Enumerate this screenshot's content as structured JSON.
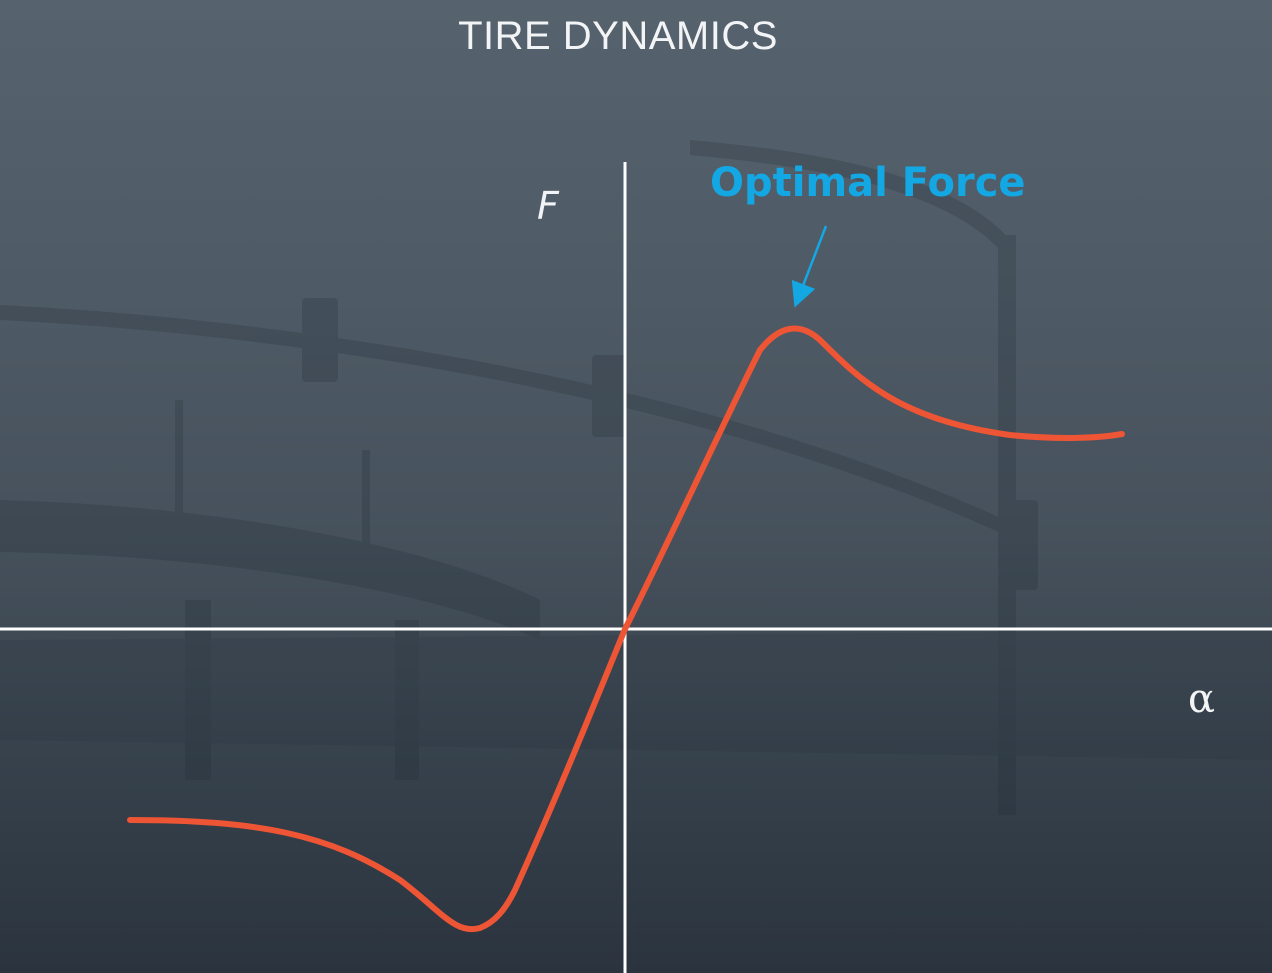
{
  "title": "TIRE DYNAMICS",
  "axes": {
    "y_label": "F",
    "x_label": "α"
  },
  "annotation": {
    "text": "Optimal Force"
  },
  "colors": {
    "curve": "#ee5535",
    "annotation": "#13a8e4",
    "axes": "#ffffff",
    "text": "#f2f4f6"
  }
}
